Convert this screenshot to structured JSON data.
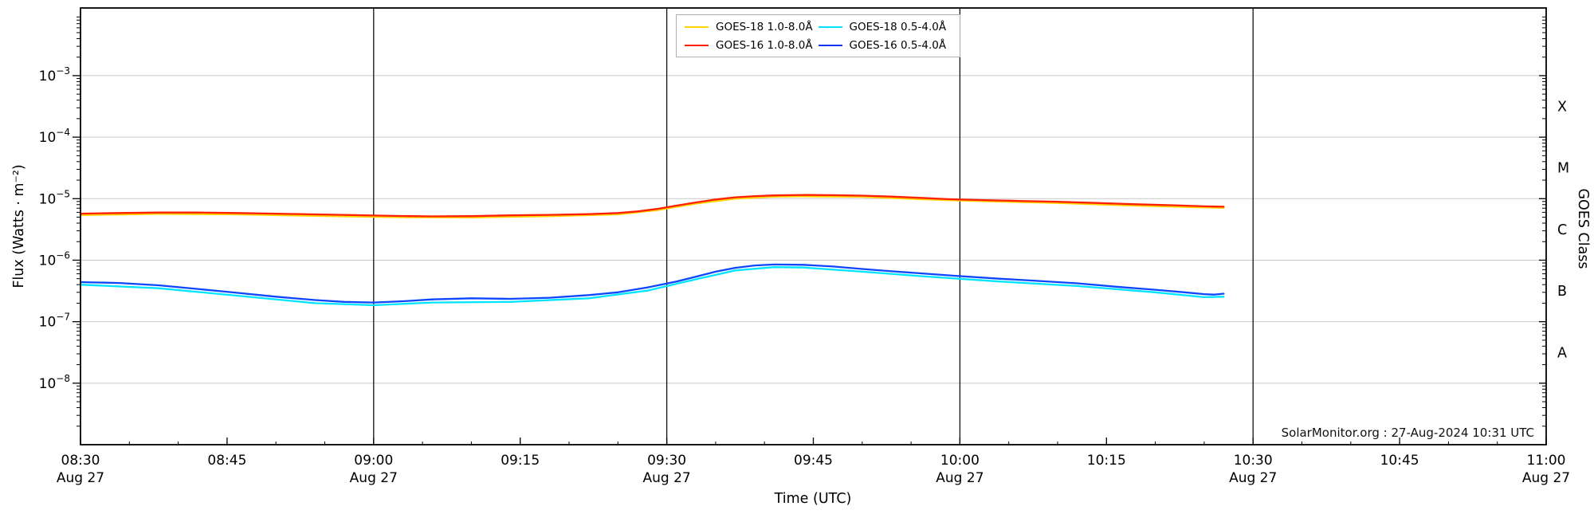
{
  "chart_data": {
    "type": "line",
    "title": "",
    "xlabel": "Time (UTC)",
    "ylabel": "Flux (Watts · m⁻²)",
    "ylabel_right": "GOES Class",
    "x_unit_minutes_after": "08:30 UTC",
    "xlim": [
      0,
      150
    ],
    "ylim": [
      1e-09,
      0.0126
    ],
    "grid": {
      "horizontal": "major decades",
      "vertical_dark_lines_min": [
        30,
        60,
        90,
        120
      ]
    },
    "x_ticks": [
      {
        "t": 0,
        "label": "08:30",
        "sub": "Aug 27"
      },
      {
        "t": 15,
        "label": "08:45"
      },
      {
        "t": 30,
        "label": "09:00",
        "sub": "Aug 27"
      },
      {
        "t": 45,
        "label": "09:15"
      },
      {
        "t": 60,
        "label": "09:30",
        "sub": "Aug 27"
      },
      {
        "t": 75,
        "label": "09:45"
      },
      {
        "t": 90,
        "label": "10:00",
        "sub": "Aug 27"
      },
      {
        "t": 105,
        "label": "10:15"
      },
      {
        "t": 120,
        "label": "10:30",
        "sub": "Aug 27"
      },
      {
        "t": 135,
        "label": "10:45"
      },
      {
        "t": 150,
        "label": "11:00",
        "sub": "Aug 27"
      }
    ],
    "y_tick_exponents": [
      -3,
      -4,
      -5,
      -6,
      -7,
      -8
    ],
    "goes_classes": [
      {
        "label": "X",
        "flux": 0.000316
      },
      {
        "label": "M",
        "flux": 3.16e-05
      },
      {
        "label": "C",
        "flux": 3.16e-06
      },
      {
        "label": "B",
        "flux": 3.16e-07
      },
      {
        "label": "A",
        "flux": 3.16e-08
      }
    ],
    "legend": {
      "position": "top center",
      "items": [
        {
          "label": "GOES-18 1.0-8.0Å",
          "color": "#ffd400"
        },
        {
          "label": "GOES-16 1.0-8.0Å",
          "color": "#ff1e00"
        },
        {
          "label": "GOES-18 0.5-4.0Å",
          "color": "#00e5ff"
        },
        {
          "label": "GOES-16 0.5-4.0Å",
          "color": "#1535f0"
        }
      ]
    },
    "annotation": "SolarMonitor.org : 27-Aug-2024 10:31 UTC",
    "series": [
      {
        "name": "GOES-18 1.0-8.0Å",
        "color": "#ffd400",
        "points": [
          [
            0,
            5.4e-06
          ],
          [
            8,
            5.65e-06
          ],
          [
            16,
            5.55e-06
          ],
          [
            24,
            5.25e-06
          ],
          [
            32,
            5e-06
          ],
          [
            40,
            4.95e-06
          ],
          [
            48,
            5.2e-06
          ],
          [
            55,
            5.55e-06
          ],
          [
            59,
            6.5e-06
          ],
          [
            63,
            8.3e-06
          ],
          [
            67,
            1e-05
          ],
          [
            71,
            1.08e-05
          ],
          [
            74,
            1.09e-05
          ],
          [
            80,
            1.07e-05
          ],
          [
            86,
            9.8e-06
          ],
          [
            92,
            9.1e-06
          ],
          [
            100,
            8.5e-06
          ],
          [
            108,
            7.7e-06
          ],
          [
            115,
            7.2e-06
          ],
          [
            117,
            7.1e-06
          ]
        ]
      },
      {
        "name": "GOES-18 0.5-4.0Å",
        "color": "#00e5ff",
        "points": [
          [
            0,
            4e-07
          ],
          [
            8,
            3.5e-07
          ],
          [
            16,
            2.65e-07
          ],
          [
            24,
            2e-07
          ],
          [
            30,
            1.85e-07
          ],
          [
            36,
            2.05e-07
          ],
          [
            44,
            2.1e-07
          ],
          [
            52,
            2.4e-07
          ],
          [
            58,
            3.2e-07
          ],
          [
            63,
            4.9e-07
          ],
          [
            67,
            6.8e-07
          ],
          [
            71,
            7.7e-07
          ],
          [
            74,
            7.6e-07
          ],
          [
            80,
            6.5e-07
          ],
          [
            86,
            5.5e-07
          ],
          [
            94,
            4.5e-07
          ],
          [
            102,
            3.8e-07
          ],
          [
            110,
            3e-07
          ],
          [
            115,
            2.5e-07
          ],
          [
            117,
            2.55e-07
          ]
        ]
      },
      {
        "name": "GOES-16 1.0-8.0Å",
        "color": "#ff2000",
        "points": [
          [
            0,
            5.7e-06
          ],
          [
            4,
            5.85e-06
          ],
          [
            8,
            5.95e-06
          ],
          [
            12,
            5.95e-06
          ],
          [
            16,
            5.85e-06
          ],
          [
            20,
            5.7e-06
          ],
          [
            24,
            5.55e-06
          ],
          [
            28,
            5.4e-06
          ],
          [
            32,
            5.25e-06
          ],
          [
            36,
            5.15e-06
          ],
          [
            40,
            5.2e-06
          ],
          [
            44,
            5.35e-06
          ],
          [
            48,
            5.45e-06
          ],
          [
            52,
            5.6e-06
          ],
          [
            55,
            5.85e-06
          ],
          [
            57,
            6.2e-06
          ],
          [
            59,
            6.8e-06
          ],
          [
            61,
            7.7e-06
          ],
          [
            63,
            8.7e-06
          ],
          [
            65,
            9.7e-06
          ],
          [
            67,
            1.05e-05
          ],
          [
            69,
            1.1e-05
          ],
          [
            71,
            1.13e-05
          ],
          [
            74,
            1.15e-05
          ],
          [
            77,
            1.14e-05
          ],
          [
            80,
            1.12e-05
          ],
          [
            83,
            1.08e-05
          ],
          [
            86,
            1.03e-05
          ],
          [
            89,
            9.8e-06
          ],
          [
            92,
            9.5e-06
          ],
          [
            96,
            9.2e-06
          ],
          [
            100,
            8.9e-06
          ],
          [
            104,
            8.5e-06
          ],
          [
            108,
            8.1e-06
          ],
          [
            112,
            7.8e-06
          ],
          [
            115,
            7.5e-06
          ],
          [
            117,
            7.4e-06
          ]
        ]
      },
      {
        "name": "GOES-16 0.5-4.0Å",
        "color": "#0d46ff",
        "points": [
          [
            0,
            4.4e-07
          ],
          [
            4,
            4.25e-07
          ],
          [
            8,
            3.9e-07
          ],
          [
            12,
            3.4e-07
          ],
          [
            16,
            2.95e-07
          ],
          [
            20,
            2.55e-07
          ],
          [
            24,
            2.25e-07
          ],
          [
            27,
            2.1e-07
          ],
          [
            30,
            2.05e-07
          ],
          [
            33,
            2.15e-07
          ],
          [
            36,
            2.3e-07
          ],
          [
            40,
            2.4e-07
          ],
          [
            44,
            2.35e-07
          ],
          [
            48,
            2.45e-07
          ],
          [
            52,
            2.7e-07
          ],
          [
            55,
            3e-07
          ],
          [
            58,
            3.6e-07
          ],
          [
            61,
            4.5e-07
          ],
          [
            63,
            5.4e-07
          ],
          [
            65,
            6.5e-07
          ],
          [
            67,
            7.5e-07
          ],
          [
            69,
            8.2e-07
          ],
          [
            71,
            8.5e-07
          ],
          [
            74,
            8.4e-07
          ],
          [
            77,
            7.9e-07
          ],
          [
            80,
            7.2e-07
          ],
          [
            83,
            6.6e-07
          ],
          [
            86,
            6.1e-07
          ],
          [
            90,
            5.5e-07
          ],
          [
            94,
            5e-07
          ],
          [
            98,
            4.6e-07
          ],
          [
            102,
            4.2e-07
          ],
          [
            106,
            3.7e-07
          ],
          [
            110,
            3.3e-07
          ],
          [
            113,
            3e-07
          ],
          [
            115,
            2.8e-07
          ],
          [
            116,
            2.75e-07
          ],
          [
            117,
            2.85e-07
          ]
        ]
      }
    ]
  }
}
